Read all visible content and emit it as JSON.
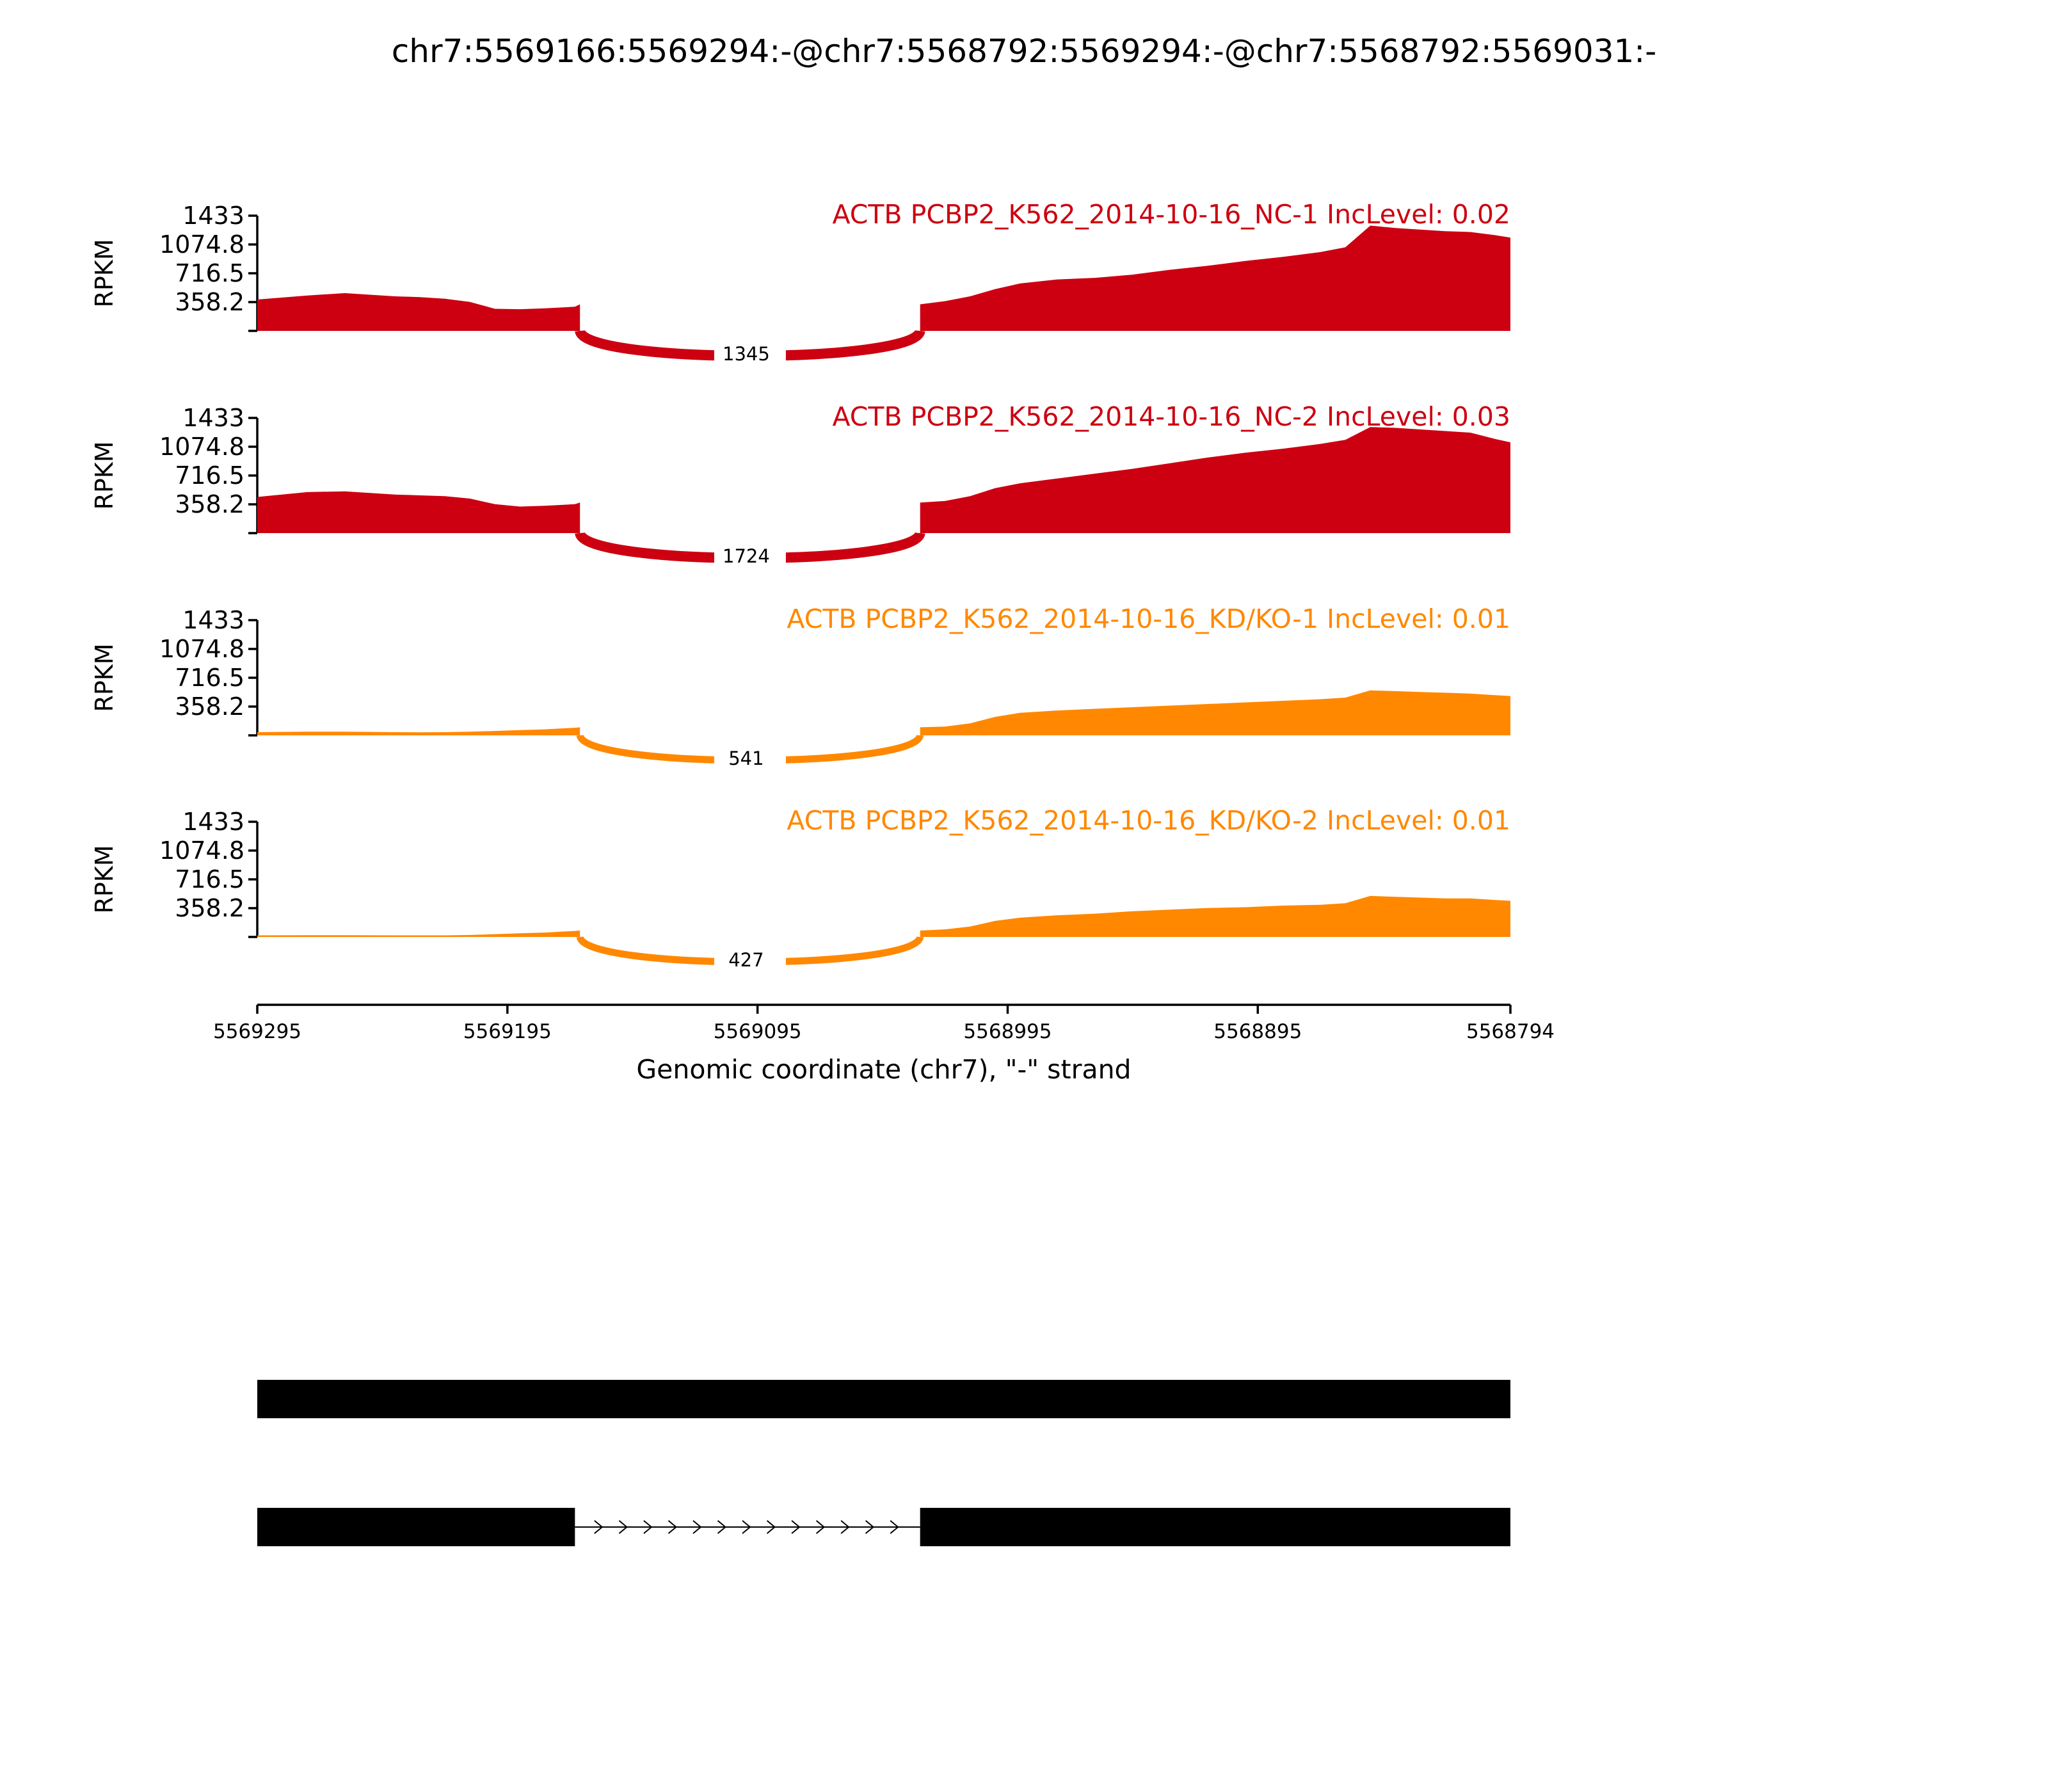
{
  "title": "chr7:5569166:5569294:-@chr7:5568792:5569294:-@chr7:5568792:5569031:-",
  "chart_data": {
    "type": "area",
    "ylabel": "RPKM",
    "yticks": [
      "1433",
      "1074.8",
      "716.5",
      "358.2"
    ],
    "ylim": [
      0,
      1433
    ],
    "xlabel": "Genomic coordinate (chr7), \"-\" strand",
    "xticks": [
      "5569295",
      "5569195",
      "5569095",
      "5568995",
      "5568895",
      "5568794"
    ],
    "xlim": [
      5569295,
      5568794
    ],
    "grid": false,
    "series": [
      {
        "name": "ACTB PCBP2_K562_2014-10-16_NC-1 IncLevel: 0.02",
        "color": "#cc0011",
        "junction_count": "1345",
        "coverage_x": [
          5569295,
          5569275,
          5569260,
          5569240,
          5569230,
          5569220,
          5569210,
          5569200,
          5569190,
          5569180,
          5569168,
          5569166,
          5569030,
          5569020,
          5569010,
          5569000,
          5568990,
          5568975,
          5568960,
          5568945,
          5568930,
          5568915,
          5568900,
          5568885,
          5568870,
          5568860,
          5568850,
          5568840,
          5568830,
          5568820,
          5568810,
          5568800,
          5568794
        ],
        "coverage_y": [
          390,
          440,
          470,
          430,
          420,
          400,
          360,
          275,
          270,
          280,
          300,
          330,
          330,
          370,
          430,
          520,
          590,
          640,
          660,
          700,
          760,
          810,
          870,
          920,
          980,
          1040,
          1310,
          1280,
          1260,
          1240,
          1230,
          1190,
          1160
        ]
      },
      {
        "name": "ACTB PCBP2_K562_2014-10-16_NC-2 IncLevel: 0.03",
        "color": "#cc0011",
        "junction_count": "1724",
        "coverage_x": [
          5569295,
          5569275,
          5569260,
          5569240,
          5569230,
          5569220,
          5569210,
          5569200,
          5569190,
          5569180,
          5569168,
          5569166,
          5569030,
          5569020,
          5569010,
          5569000,
          5568990,
          5568975,
          5568960,
          5568945,
          5568930,
          5568915,
          5568900,
          5568885,
          5568870,
          5568860,
          5568850,
          5568840,
          5568830,
          5568820,
          5568810,
          5568800,
          5568794
        ],
        "coverage_y": [
          450,
          510,
          520,
          480,
          470,
          460,
          430,
          360,
          330,
          340,
          360,
          380,
          380,
          400,
          460,
          560,
          620,
          680,
          740,
          800,
          870,
          940,
          1000,
          1050,
          1110,
          1160,
          1320,
          1310,
          1290,
          1270,
          1250,
          1170,
          1130
        ]
      },
      {
        "name": "ACTB PCBP2_K562_2014-10-16_KD/KO-1 IncLevel: 0.01",
        "color": "#ff8800",
        "junction_count": "541",
        "coverage_x": [
          5569295,
          5569275,
          5569260,
          5569240,
          5569230,
          5569220,
          5569210,
          5569200,
          5569190,
          5569180,
          5569168,
          5569166,
          5569030,
          5569020,
          5569010,
          5569000,
          5568990,
          5568975,
          5568960,
          5568945,
          5568930,
          5568915,
          5568900,
          5568885,
          5568870,
          5568860,
          5568850,
          5568840,
          5568830,
          5568820,
          5568810,
          5568800,
          5568794
        ],
        "coverage_y": [
          40,
          45,
          45,
          40,
          38,
          40,
          45,
          55,
          65,
          75,
          95,
          100,
          100,
          110,
          150,
          230,
          280,
          310,
          330,
          350,
          370,
          390,
          410,
          430,
          450,
          470,
          560,
          550,
          540,
          530,
          520,
          500,
          490
        ]
      },
      {
        "name": "ACTB PCBP2_K562_2014-10-16_KD/KO-2 IncLevel: 0.01",
        "color": "#ff8800",
        "junction_count": "427",
        "coverage_x": [
          5569295,
          5569275,
          5569260,
          5569240,
          5569230,
          5569220,
          5569210,
          5569200,
          5569190,
          5569180,
          5569168,
          5569166,
          5569030,
          5569020,
          5569010,
          5569000,
          5568990,
          5568975,
          5568960,
          5568945,
          5568930,
          5568915,
          5568900,
          5568885,
          5568870,
          5568860,
          5568850,
          5568840,
          5568830,
          5568820,
          5568810,
          5568800,
          5568794
        ],
        "coverage_y": [
          20,
          22,
          22,
          20,
          20,
          20,
          25,
          35,
          45,
          55,
          75,
          80,
          80,
          95,
          130,
          200,
          240,
          270,
          290,
          320,
          340,
          360,
          370,
          390,
          400,
          420,
          510,
          500,
          490,
          480,
          480,
          460,
          450
        ]
      }
    ],
    "junction": {
      "from": 5569166,
      "to": 5569030
    },
    "isoforms": [
      {
        "exons": [
          [
            5569295,
            5568794
          ]
        ]
      },
      {
        "exons": [
          [
            5569295,
            5569168
          ],
          [
            5569030,
            5568794
          ]
        ]
      }
    ]
  }
}
